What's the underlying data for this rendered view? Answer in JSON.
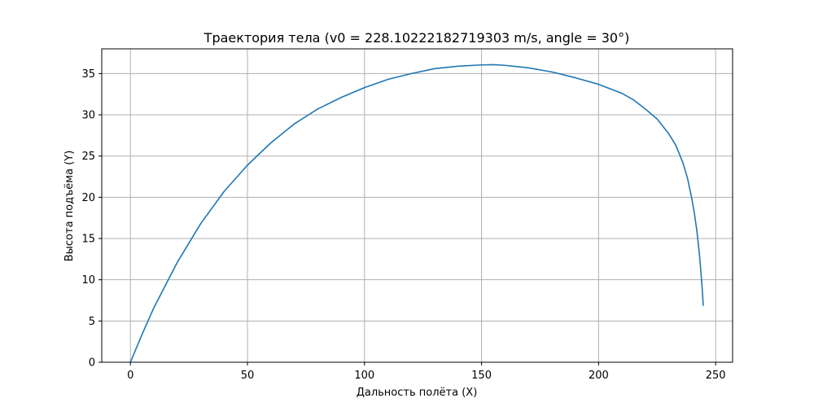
{
  "chart_data": {
    "type": "line",
    "title": "Траектория тела (v0 = 228.10222182719303 m/s, angle = 30°)",
    "xlabel": "Дальность полёта (X)",
    "ylabel": "Высота подъёма (Y)",
    "xlim": [
      -12.25,
      257.25
    ],
    "ylim": [
      0,
      38
    ],
    "xticks": [
      0,
      50,
      100,
      150,
      200,
      250
    ],
    "xtick_labels": [
      "0",
      "50",
      "100",
      "150",
      "200",
      "250"
    ],
    "yticks": [
      0,
      5,
      10,
      15,
      20,
      25,
      30,
      35
    ],
    "ytick_labels": [
      "0",
      "5",
      "10",
      "15",
      "20",
      "25",
      "30",
      "35"
    ],
    "grid": true,
    "series": [
      {
        "color": "#1f77b4",
        "x": [
          0,
          5,
          10,
          20,
          30,
          40,
          50,
          60,
          70,
          80,
          90,
          100,
          110,
          120,
          130,
          140,
          150,
          155,
          160,
          170,
          180,
          190,
          200,
          210,
          215,
          220,
          225,
          230,
          233,
          236,
          238,
          240,
          241,
          242,
          243,
          243.5,
          244,
          244.3,
          244.5,
          244.7
        ],
        "y": [
          0,
          3.4,
          6.6,
          12.1,
          16.8,
          20.7,
          23.9,
          26.6,
          28.9,
          30.7,
          32.1,
          33.3,
          34.3,
          35.0,
          35.6,
          35.9,
          36.05,
          36.08,
          36.0,
          35.7,
          35.2,
          34.5,
          33.7,
          32.6,
          31.8,
          30.7,
          29.5,
          27.7,
          26.3,
          24.2,
          22.3,
          19.6,
          17.9,
          15.9,
          13.3,
          11.7,
          9.9,
          8.7,
          7.9,
          6.9
        ]
      }
    ]
  }
}
